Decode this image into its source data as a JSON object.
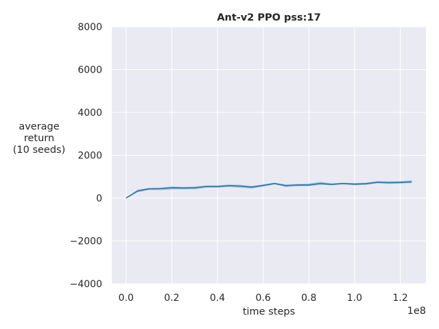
{
  "chart_data": {
    "type": "line",
    "title": "Ant-v2 PPO pss:17",
    "xlabel": "time steps",
    "ylabel_lines": [
      "average",
      "return",
      "(10 seeds)"
    ],
    "x_offset_text": "1e8",
    "xlim": [
      -0.0625,
      1.3125
    ],
    "ylim": [
      -4000,
      8000
    ],
    "x_ticks": [
      0.0,
      0.2,
      0.4,
      0.6,
      0.8,
      1.0,
      1.2
    ],
    "x_tick_labels": [
      "0.0",
      "0.2",
      "0.4",
      "0.6",
      "0.8",
      "1.0",
      "1.2"
    ],
    "y_ticks": [
      -4000,
      -2000,
      0,
      2000,
      4000,
      6000,
      8000
    ],
    "y_tick_labels": [
      "−4000",
      "−2000",
      "0",
      "2000",
      "4000",
      "6000",
      "8000"
    ],
    "grid": true,
    "series": [
      {
        "color": "#2f7bb0",
        "band_color": "#5d9ccc",
        "x": [
          0.0,
          0.05,
          0.1,
          0.15,
          0.2,
          0.25,
          0.3,
          0.35,
          0.4,
          0.45,
          0.5,
          0.55,
          0.6,
          0.65,
          0.7,
          0.75,
          0.8,
          0.85,
          0.9,
          0.95,
          1.0,
          1.05,
          1.1,
          1.15,
          1.2,
          1.25
        ],
        "y": [
          0,
          330,
          430,
          440,
          480,
          470,
          480,
          540,
          540,
          580,
          560,
          510,
          590,
          680,
          580,
          610,
          610,
          680,
          640,
          680,
          650,
          670,
          740,
          720,
          730,
          760
        ],
        "y_lower": [
          0,
          270,
          380,
          370,
          400,
          410,
          410,
          480,
          480,
          520,
          480,
          450,
          540,
          640,
          510,
          560,
          560,
          620,
          600,
          640,
          600,
          620,
          690,
          660,
          680,
          700
        ],
        "y_upper": [
          0,
          390,
          470,
          490,
          550,
          520,
          540,
          590,
          590,
          630,
          620,
          570,
          640,
          720,
          640,
          660,
          680,
          760,
          690,
          720,
          700,
          720,
          790,
          780,
          790,
          830
        ]
      }
    ]
  }
}
